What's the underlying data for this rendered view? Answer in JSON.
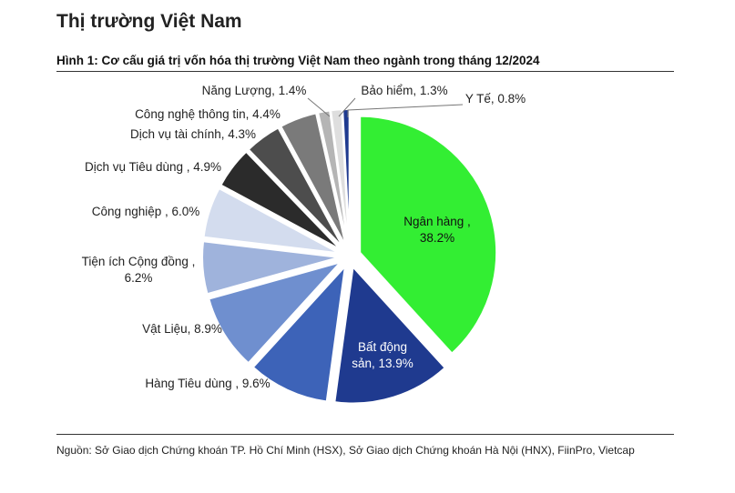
{
  "header": {
    "heading": "Thị trường Việt Nam",
    "figure_title": "Hình 1: Cơ cấu giá trị vốn hóa thị trường Việt Nam theo ngành trong tháng 12/2024"
  },
  "source_note": "Nguồn: Sở Giao dịch Chứng khoán TP. Hồ Chí Minh (HSX), Sở Giao dịch Chứng khoán Hà Nội (HNX), FiinPro, Vietcap",
  "chart_data": {
    "type": "pie",
    "title": "Hình 1: Cơ cấu giá trị vốn hóa thị trường Việt Nam theo ngành trong tháng 12/2024",
    "unit": "%",
    "categories": [
      "Ngân hàng",
      "Bất động sản",
      "Hàng Tiêu dùng",
      "Vật Liệu",
      "Tiện ích Cộng đồng",
      "Công nghiệp",
      "Dịch vụ Tiêu dùng",
      "Dịch vụ tài chính",
      "Công nghệ thông tin",
      "Năng Lượng",
      "Bảo hiểm",
      "Y Tế"
    ],
    "values": [
      38.2,
      13.9,
      9.6,
      8.9,
      6.2,
      6.0,
      4.9,
      4.3,
      4.4,
      1.4,
      1.3,
      0.8
    ],
    "labels": [
      [
        "Ngân hàng ,",
        "38.2%"
      ],
      [
        "Bất động",
        "sản, 13.9%"
      ],
      [
        "Hàng Tiêu dùng , 9.6%"
      ],
      [
        "Vật Liệu, 8.9%"
      ],
      [
        "Tiện ích Cộng đồng ,",
        "6.2%"
      ],
      [
        "Công nghiệp , 6.0%"
      ],
      [
        "Dịch vụ Tiêu dùng , 4.9%"
      ],
      [
        "Dịch vụ tài chính, 4.3%"
      ],
      [
        "Công nghệ thông tin, 4.4%"
      ],
      [
        "Năng Lượng, 1.4%"
      ],
      [
        "Bảo hiểm, 1.3%"
      ],
      [
        "Y Tế, 0.8%"
      ]
    ],
    "colors": [
      "#33ee33",
      "#1f3a8f",
      "#3d63b8",
      "#6f8fcf",
      "#9fb3dc",
      "#d3dcee",
      "#2b2b2b",
      "#4d4d4d",
      "#7a7a7a",
      "#b5b5b5",
      "#dedede",
      "#1f3a8f"
    ],
    "exploded": true
  }
}
